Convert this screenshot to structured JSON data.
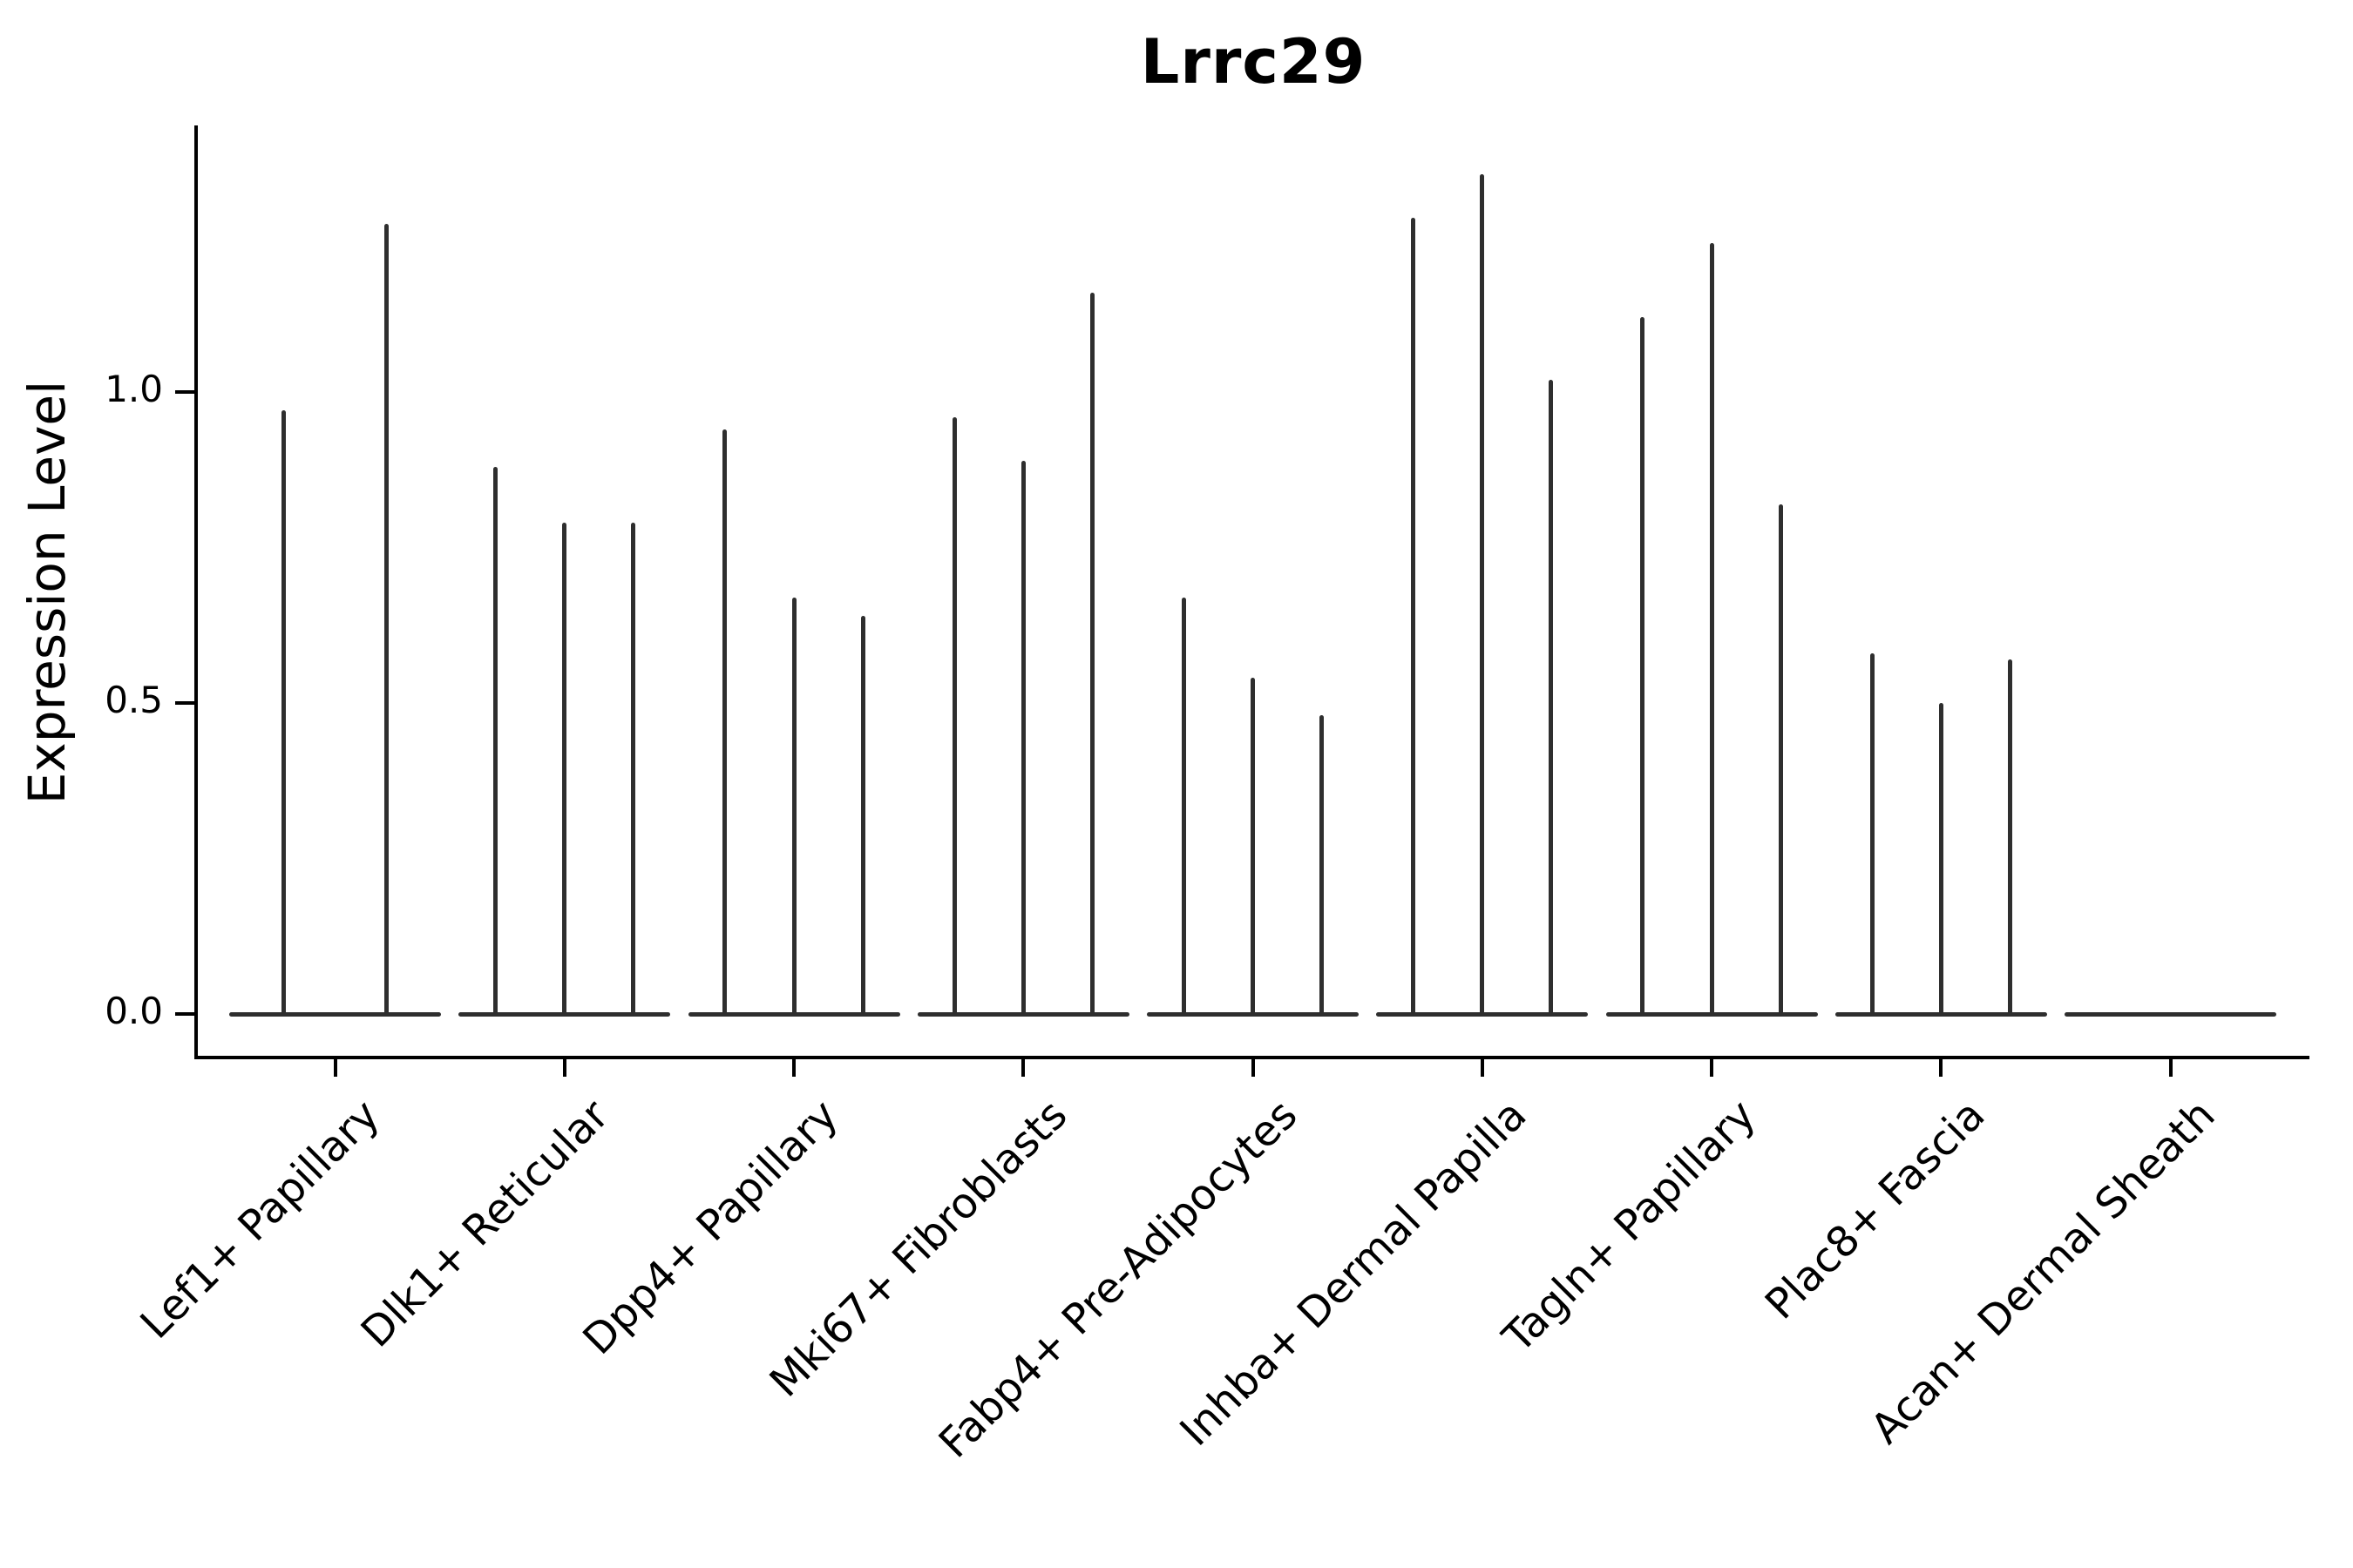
{
  "chart_data": {
    "type": "violin",
    "title": "Lrrc29",
    "xlabel": "",
    "ylabel": "Expression Level",
    "ytick_labels": [
      "0.0",
      "0.5",
      "1.0"
    ],
    "ytick_values": [
      0.0,
      0.5,
      1.0
    ],
    "ylim": [
      -0.07,
      1.43
    ],
    "grid": "off",
    "legend": "none",
    "violin_color": "#2e2e2e",
    "axis_color": "#000000",
    "categories": [
      "Lef1+ Papillary",
      "Dlk1+ Reticular",
      "Dpp4+ Papillary",
      "Mki67+ Fibroblasts",
      "Fabp4+ Pre-Adipocytes",
      "Inhba+ Dermal Papilla",
      "Tagln+ Papillary",
      "Plac8+ Fascia",
      "Acan+ Dermal Sheath"
    ],
    "groups": [
      {
        "label": "Lef1+ Papillary",
        "spike_heights": [
          0.97,
          1.27
        ]
      },
      {
        "label": "Dlk1+ Reticular",
        "spike_heights": [
          0.88,
          0.79,
          0.79
        ]
      },
      {
        "label": "Dpp4+ Papillary",
        "spike_heights": [
          0.94,
          0.67,
          0.64
        ]
      },
      {
        "label": "Mki67+ Fibroblasts",
        "spike_heights": [
          0.96,
          0.89,
          1.16
        ]
      },
      {
        "label": "Fabp4+ Pre-Adipocytes",
        "spike_heights": [
          0.67,
          0.54,
          0.48
        ]
      },
      {
        "label": "Inhba+ Dermal Papilla",
        "spike_heights": [
          1.28,
          1.35,
          1.02
        ]
      },
      {
        "label": "Tagln+ Papillary",
        "spike_heights": [
          1.12,
          1.24,
          0.82
        ]
      },
      {
        "label": "Plac8+ Fascia",
        "spike_heights": [
          0.58,
          0.5,
          0.57
        ]
      },
      {
        "label": "Acan+ Dermal Sheath",
        "spike_heights": []
      }
    ]
  }
}
